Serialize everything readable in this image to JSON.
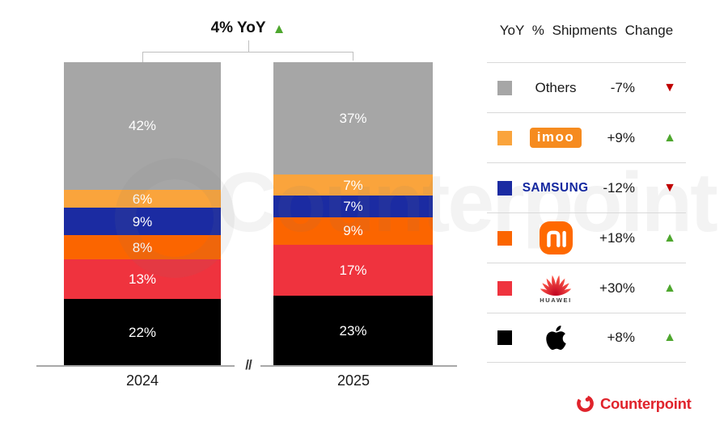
{
  "chart_data": {
    "type": "bar",
    "stacked": true,
    "value_unit": "%",
    "categories": [
      "2024",
      "2025"
    ],
    "series": [
      {
        "name": "Apple",
        "color": "#000000",
        "values": [
          22,
          23
        ],
        "labels": [
          "22%",
          "23%"
        ]
      },
      {
        "name": "HUAWEI",
        "color": "#EF333E",
        "values": [
          13,
          17
        ],
        "labels": [
          "13%",
          "17%"
        ]
      },
      {
        "name": "Xiaomi",
        "color": "#FB6500",
        "values": [
          8,
          9
        ],
        "labels": [
          "8%",
          "9%"
        ]
      },
      {
        "name": "Samsung",
        "color": "#1B2BA2",
        "values": [
          9,
          7
        ],
        "labels": [
          "9%",
          "7%"
        ]
      },
      {
        "name": "imoo",
        "color": "#FAA43C",
        "values": [
          6,
          7
        ],
        "labels": [
          "6%",
          "7%"
        ]
      },
      {
        "name": "Others",
        "color": "#A6A6A6",
        "values": [
          42,
          37
        ],
        "labels": [
          "42%",
          "37%"
        ]
      }
    ],
    "ylim": [
      0,
      100
    ],
    "legend_position": "right",
    "title": "4% YoY"
  },
  "header": {
    "total_change_label": "4% YoY",
    "symbol": "▲",
    "symbol_color": "#4EA72E"
  },
  "axis": {
    "break_symbol": "//",
    "year_left": "2024",
    "year_right": "2025"
  },
  "legend": {
    "header": "YoY % Shipments Change",
    "rows": [
      {
        "name": "Others",
        "change": "-7%",
        "direction": "down",
        "symbol": "▼",
        "symbol_color": "#C00000",
        "color": "#A6A6A6"
      },
      {
        "name": "imoo",
        "logo_text": "imoo",
        "logo_bg": "#F68B1F",
        "change": "+9%",
        "direction": "up",
        "symbol": "▲",
        "symbol_color": "#4EA72E",
        "color": "#FAA43C"
      },
      {
        "name": "Samsung",
        "logo_text": "SAMSUNG",
        "logo_color": "#1428A0",
        "change": "-12%",
        "direction": "down",
        "symbol": "▼",
        "symbol_color": "#C00000",
        "color": "#1B2BA2"
      },
      {
        "name": "Xiaomi",
        "change": "+18%",
        "direction": "up",
        "symbol": "▲",
        "symbol_color": "#4EA72E",
        "color": "#FB6500"
      },
      {
        "name": "Huawei",
        "logo_text": "HUAWEI",
        "change": "+30%",
        "direction": "up",
        "symbol": "▲",
        "symbol_color": "#4EA72E",
        "color": "#EF333E"
      },
      {
        "name": "Apple",
        "change": "+8%",
        "direction": "up",
        "symbol": "▲",
        "symbol_color": "#4EA72E",
        "color": "#000000"
      }
    ]
  },
  "branding": {
    "logo_text": "Counterpoint",
    "logo_color": "#E0232B"
  },
  "watermark": {
    "text": "Counterpoint"
  }
}
